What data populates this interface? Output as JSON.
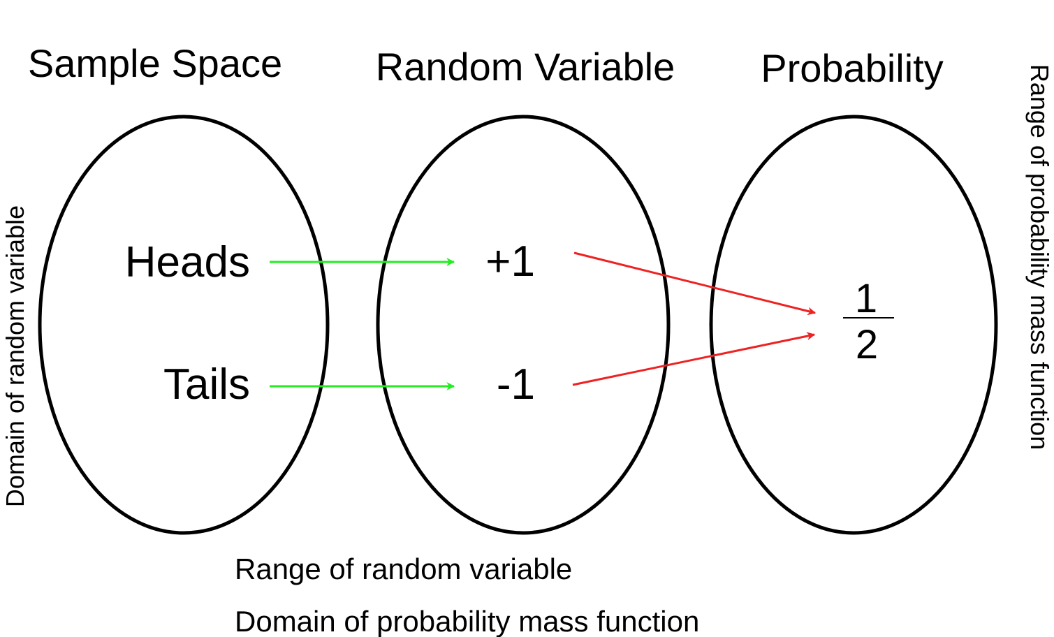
{
  "headers": {
    "sample_space": "Sample Space",
    "random_variable": "Random Variable",
    "probability": "Probability"
  },
  "sample_space": {
    "outcomes": [
      "Heads",
      "Tails"
    ]
  },
  "random_variable": {
    "values": [
      "+1",
      "-1"
    ]
  },
  "probability": {
    "numerator": "1",
    "denominator": "2"
  },
  "side_labels": {
    "left": "Domain of random variable",
    "right": "Range of probability mass function"
  },
  "bottom_labels": {
    "line1": "Range of random variable",
    "line2": "Domain of probability mass function"
  },
  "colors": {
    "mapping_arrow": "#22ee22",
    "probability_arrow": "#ee2222",
    "outline": "#000000"
  }
}
